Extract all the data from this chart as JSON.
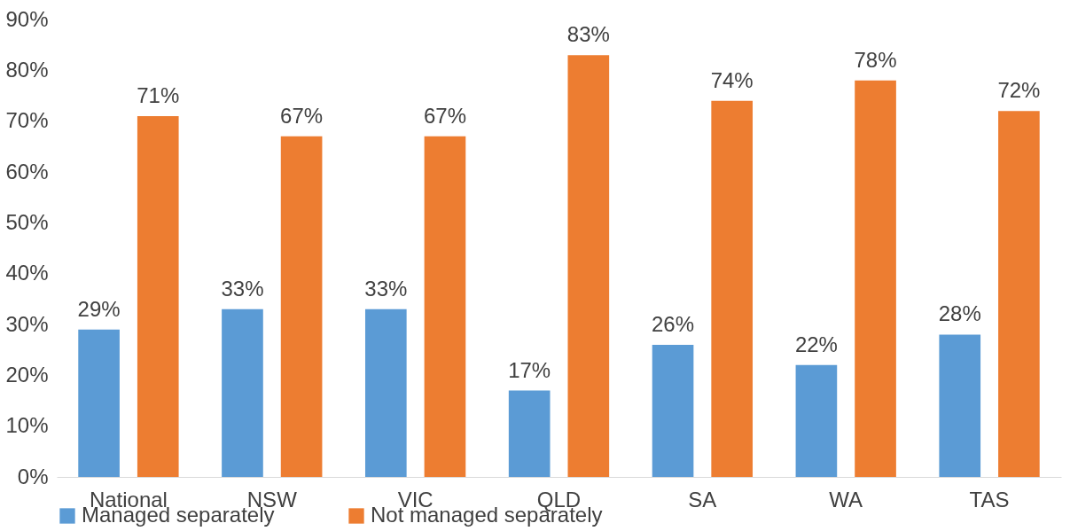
{
  "chart_data": {
    "type": "bar",
    "categories": [
      "National",
      "NSW",
      "VIC",
      "QLD",
      "SA",
      "WA",
      "TAS"
    ],
    "series": [
      {
        "name": "Managed separately",
        "color": "#5b9bd5",
        "values": [
          29,
          33,
          33,
          17,
          26,
          22,
          28
        ],
        "value_labels": [
          "29%",
          "33%",
          "33%",
          "17%",
          "26%",
          "22%",
          "28%"
        ]
      },
      {
        "name": "Not managed separately",
        "color": "#ed7d31",
        "values": [
          71,
          67,
          67,
          83,
          74,
          78,
          72
        ],
        "value_labels": [
          "71%",
          "67%",
          "67%",
          "83%",
          "74%",
          "78%",
          "72%"
        ]
      }
    ],
    "ylim": [
      0,
      90
    ],
    "yticks": [
      {
        "value": 0,
        "label": "0%"
      },
      {
        "value": 10,
        "label": "10%"
      },
      {
        "value": 20,
        "label": "20%"
      },
      {
        "value": 30,
        "label": "30%"
      },
      {
        "value": 40,
        "label": "40%"
      },
      {
        "value": 50,
        "label": "50%"
      },
      {
        "value": 60,
        "label": "60%"
      },
      {
        "value": 70,
        "label": "70%"
      },
      {
        "value": 80,
        "label": "80%"
      },
      {
        "value": 90,
        "label": "90%"
      }
    ],
    "grid": false,
    "legend": "bottom"
  }
}
